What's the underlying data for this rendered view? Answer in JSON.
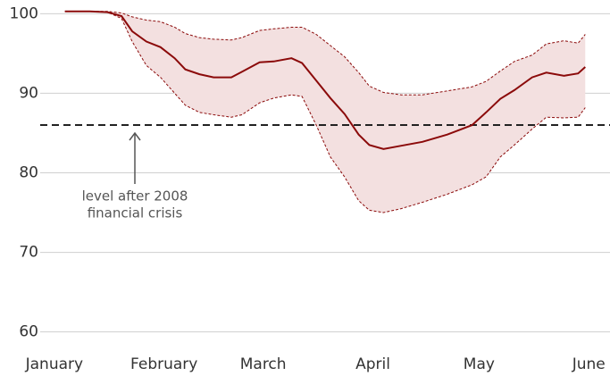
{
  "chart_data": {
    "type": "line",
    "x": [
      3,
      10,
      15,
      19,
      22,
      26,
      30,
      34,
      37,
      41,
      45,
      50,
      53,
      58,
      62,
      67,
      70,
      74,
      78,
      82,
      86,
      89,
      93,
      98,
      104,
      111,
      118,
      122,
      126,
      130,
      135,
      139,
      144,
      148,
      150
    ],
    "values": [
      100.3,
      100.3,
      100.2,
      99.7,
      97.8,
      96.5,
      95.8,
      94.4,
      93.0,
      92.4,
      92.0,
      92.0,
      92.7,
      93.9,
      94.0,
      94.4,
      93.8,
      91.6,
      89.4,
      87.4,
      84.8,
      83.5,
      83.0,
      83.4,
      83.9,
      84.8,
      86.0,
      87.6,
      89.3,
      90.4,
      92.0,
      92.6,
      92.2,
      92.5,
      93.3
    ],
    "upper": [
      100.3,
      100.3,
      100.3,
      100.1,
      99.6,
      99.2,
      99.0,
      98.3,
      97.5,
      97.0,
      96.8,
      96.7,
      97.0,
      97.9,
      98.1,
      98.3,
      98.3,
      97.4,
      96.0,
      94.6,
      92.6,
      90.9,
      90.1,
      89.8,
      89.8,
      90.3,
      90.8,
      91.5,
      92.8,
      94.0,
      94.8,
      96.2,
      96.6,
      96.3,
      97.4
    ],
    "lower": [
      100.3,
      100.3,
      100.2,
      99.4,
      96.5,
      93.5,
      92.0,
      90.0,
      88.5,
      87.6,
      87.3,
      87.0,
      87.3,
      88.8,
      89.4,
      89.8,
      89.6,
      86.0,
      82.0,
      79.5,
      76.5,
      75.3,
      75.0,
      75.5,
      76.3,
      77.3,
      78.5,
      79.5,
      82.0,
      83.5,
      85.5,
      87.0,
      86.9,
      87.0,
      88.2
    ],
    "color": "#8b0a0a",
    "band_color": "#f3e0e0",
    "reference_line": 86,
    "annotation": [
      "level after 2008",
      "financial crisis"
    ],
    "xlim": [
      -4,
      157
    ],
    "xticks": [
      {
        "value": 0,
        "label": "January"
      },
      {
        "value": 31,
        "label": "February"
      },
      {
        "value": 59,
        "label": "March"
      },
      {
        "value": 90,
        "label": "April"
      },
      {
        "value": 120,
        "label": "May"
      },
      {
        "value": 151,
        "label": "June"
      }
    ],
    "ylim": [
      58.5,
      101.5
    ],
    "yticks": [
      60,
      70,
      80,
      90,
      100
    ],
    "grid": true
  }
}
